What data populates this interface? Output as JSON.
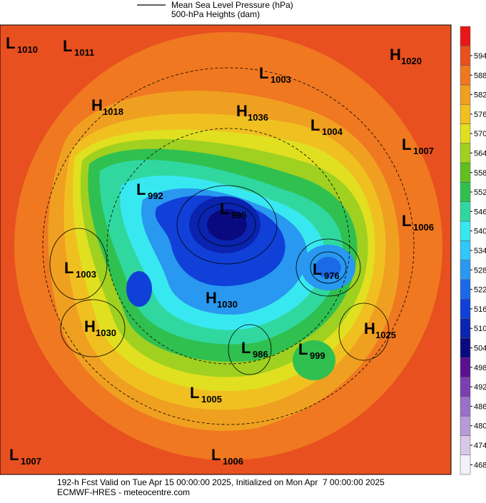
{
  "legend": {
    "mslp": "Mean Sea Level Pressure (hPa)",
    "heights": "500-hPa Heights (dam)"
  },
  "centers": [
    {
      "type": "L",
      "value": 1010
    },
    {
      "type": "L",
      "value": 1011
    },
    {
      "type": "H",
      "value": 1020
    },
    {
      "type": "L",
      "value": 1003
    },
    {
      "type": "H",
      "value": 1018
    },
    {
      "type": "H",
      "value": 1036
    },
    {
      "type": "L",
      "value": 1004
    },
    {
      "type": "L",
      "value": 1007
    },
    {
      "type": "L",
      "value": 992
    },
    {
      "type": "L",
      "value": 995
    },
    {
      "type": "L",
      "value": 1006
    },
    {
      "type": "L",
      "value": 1003
    },
    {
      "type": "L",
      "value": 976
    },
    {
      "type": "H",
      "value": 1030
    },
    {
      "type": "H",
      "value": 1030
    },
    {
      "type": "H",
      "value": 1025
    },
    {
      "type": "L",
      "value": 986
    },
    {
      "type": "L",
      "value": 999
    },
    {
      "type": "L",
      "value": 1005
    },
    {
      "type": "L",
      "value": 1007
    },
    {
      "type": "L",
      "value": 1006
    }
  ],
  "colorbar": {
    "ticks": [
      468,
      474,
      480,
      486,
      492,
      498,
      504,
      510,
      516,
      522,
      528,
      534,
      540,
      546,
      552,
      558,
      564,
      570,
      576,
      582,
      588,
      594
    ],
    "colors": [
      "#f4f0f8",
      "#d8c8e8",
      "#b89ad8",
      "#9a70c8",
      "#7a40b0",
      "#5a1090",
      "#0a0a80",
      "#0a24b0",
      "#1040d8",
      "#1a6ae8",
      "#2898f0",
      "#30c8f8",
      "#38e8f0",
      "#30d8a0",
      "#30c050",
      "#60c020",
      "#a0d020",
      "#e0e020",
      "#f0c020",
      "#f0a020",
      "#f07820",
      "#e85020",
      "#e81818"
    ]
  },
  "footer": {
    "line1": "192-h Fcst Valid on Tue Apr 15 00:00:00 2025, Initialized on Mon Apr  7 00:00:00 2025",
    "line2": "ECMWF-HRES - meteocentre.com"
  }
}
